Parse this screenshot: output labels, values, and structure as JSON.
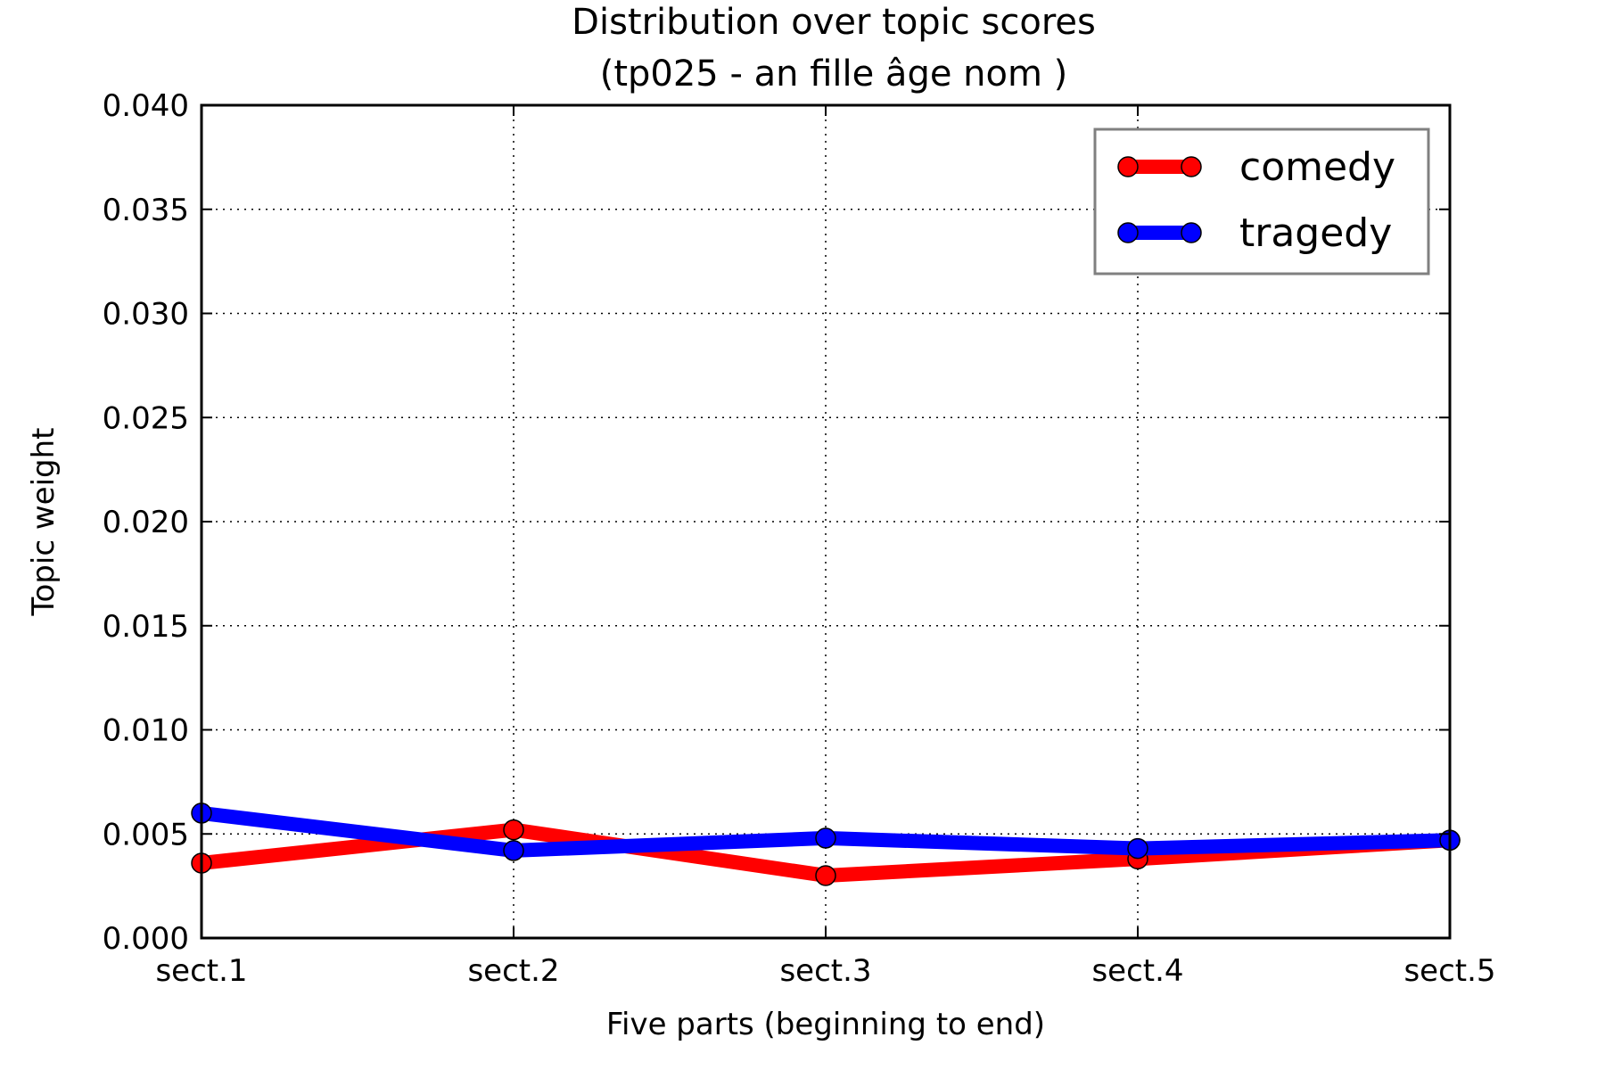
{
  "chart_data": {
    "type": "line",
    "title": "Distribution over topic scores",
    "subtitle": "(tp025 - an fille âge nom )",
    "xlabel": "Five parts (beginning to end)",
    "ylabel": "Topic weight",
    "categories": [
      "sect.1",
      "sect.2",
      "sect.3",
      "sect.4",
      "sect.5"
    ],
    "ylim": [
      0,
      0.04
    ],
    "yticks": [
      "0.000",
      "0.005",
      "0.010",
      "0.015",
      "0.020",
      "0.025",
      "0.030",
      "0.035",
      "0.040"
    ],
    "grid": true,
    "legend_position": "top-right",
    "series": [
      {
        "name": "comedy",
        "color": "#ff0000",
        "values": [
          0.0036,
          0.0052,
          0.003,
          0.0038,
          0.0047
        ]
      },
      {
        "name": "tragedy",
        "color": "#0000ff",
        "values": [
          0.006,
          0.0042,
          0.0048,
          0.0043,
          0.0047
        ]
      }
    ]
  }
}
